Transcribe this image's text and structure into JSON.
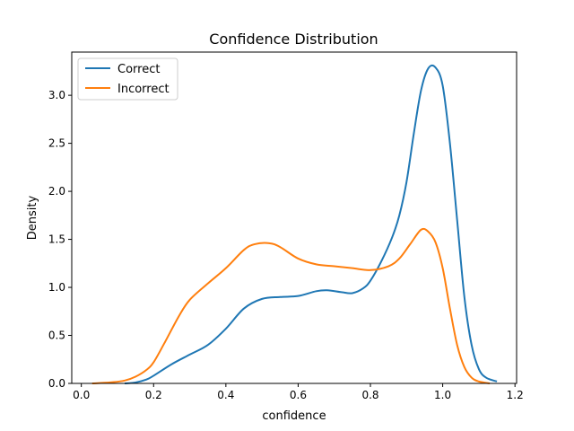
{
  "chart_data": {
    "type": "line",
    "title": "Confidence Distribution",
    "xlabel": "confidence",
    "ylabel": "Density",
    "xlim": [
      -0.0265,
      1.2045
    ],
    "ylim": [
      0,
      3.45
    ],
    "xticks": [
      "0.0",
      "0.2",
      "0.4",
      "0.6",
      "0.8",
      "1.0",
      "1.2"
    ],
    "yticks": [
      "0.0",
      "0.5",
      "1.0",
      "1.5",
      "2.0",
      "2.5",
      "3.0"
    ],
    "grid": false,
    "legend_position": "top-left",
    "series": [
      {
        "name": "Correct",
        "color": "#1f77b4",
        "x": [
          0.12,
          0.15,
          0.18,
          0.2,
          0.25,
          0.3,
          0.35,
          0.4,
          0.45,
          0.5,
          0.55,
          0.6,
          0.65,
          0.68,
          0.72,
          0.75,
          0.78,
          0.8,
          0.83,
          0.86,
          0.88,
          0.9,
          0.92,
          0.94,
          0.96,
          0.98,
          1.0,
          1.02,
          1.04,
          1.06,
          1.08,
          1.1,
          1.12,
          1.15
        ],
        "y": [
          0.0,
          0.01,
          0.04,
          0.08,
          0.2,
          0.3,
          0.4,
          0.57,
          0.78,
          0.88,
          0.9,
          0.91,
          0.96,
          0.97,
          0.95,
          0.94,
          0.99,
          1.07,
          1.27,
          1.52,
          1.75,
          2.1,
          2.6,
          3.05,
          3.28,
          3.29,
          3.1,
          2.5,
          1.7,
          0.9,
          0.4,
          0.15,
          0.06,
          0.02
        ]
      },
      {
        "name": "Incorrect",
        "color": "#ff7f0e",
        "x": [
          0.03,
          0.08,
          0.12,
          0.15,
          0.18,
          0.2,
          0.23,
          0.27,
          0.3,
          0.35,
          0.4,
          0.45,
          0.48,
          0.52,
          0.55,
          0.6,
          0.65,
          0.7,
          0.75,
          0.8,
          0.85,
          0.88,
          0.91,
          0.94,
          0.96,
          0.98,
          1.0,
          1.02,
          1.04,
          1.06,
          1.08,
          1.1,
          1.13
        ],
        "y": [
          0.0,
          0.01,
          0.03,
          0.07,
          0.14,
          0.22,
          0.42,
          0.7,
          0.87,
          1.04,
          1.2,
          1.39,
          1.45,
          1.46,
          1.42,
          1.3,
          1.24,
          1.22,
          1.2,
          1.18,
          1.22,
          1.3,
          1.45,
          1.6,
          1.58,
          1.47,
          1.2,
          0.78,
          0.4,
          0.17,
          0.06,
          0.02,
          0.0
        ]
      }
    ]
  }
}
